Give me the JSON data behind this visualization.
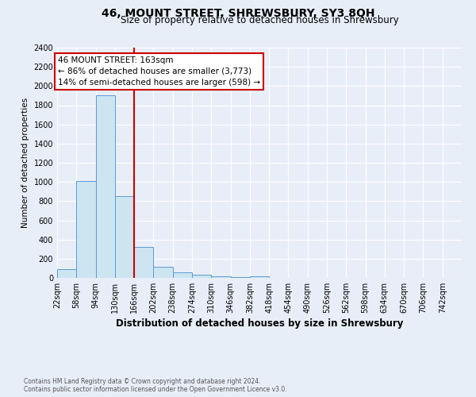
{
  "title": "46, MOUNT STREET, SHREWSBURY, SY3 8QH",
  "subtitle": "Size of property relative to detached houses in Shrewsbury",
  "xlabel": "Distribution of detached houses by size in Shrewsbury",
  "ylabel": "Number of detached properties",
  "bin_labels": [
    "22sqm",
    "58sqm",
    "94sqm",
    "130sqm",
    "166sqm",
    "202sqm",
    "238sqm",
    "274sqm",
    "310sqm",
    "346sqm",
    "382sqm",
    "418sqm",
    "454sqm",
    "490sqm",
    "526sqm",
    "562sqm",
    "598sqm",
    "634sqm",
    "670sqm",
    "706sqm",
    "742sqm"
  ],
  "bar_values": [
    90,
    1010,
    1900,
    850,
    320,
    120,
    55,
    35,
    20,
    10,
    18,
    0,
    0,
    0,
    0,
    0,
    0,
    0,
    0,
    0,
    0
  ],
  "bar_color": "#cce5f0",
  "bar_edge_color": "#5b9bd5",
  "bin_starts": [
    22,
    58,
    94,
    130,
    166,
    202,
    238,
    274,
    310,
    346,
    382,
    418,
    454,
    490,
    526,
    562,
    598,
    634,
    670,
    706,
    742
  ],
  "bin_width": 36,
  "annotation_text": "46 MOUNT STREET: 163sqm\n← 86% of detached houses are smaller (3,773)\n14% of semi-detached houses are larger (598) →",
  "annotation_box_color": "#ffffff",
  "annotation_box_edge": "#cc0000",
  "red_line_color": "#cc0000",
  "ylim": [
    0,
    2400
  ],
  "yticks": [
    0,
    200,
    400,
    600,
    800,
    1000,
    1200,
    1400,
    1600,
    1800,
    2000,
    2200,
    2400
  ],
  "footnote": "Contains HM Land Registry data © Crown copyright and database right 2024.\nContains public sector information licensed under the Open Government Licence v3.0.",
  "bg_color": "#e8eef8",
  "plot_bg_color": "#e8eef8"
}
